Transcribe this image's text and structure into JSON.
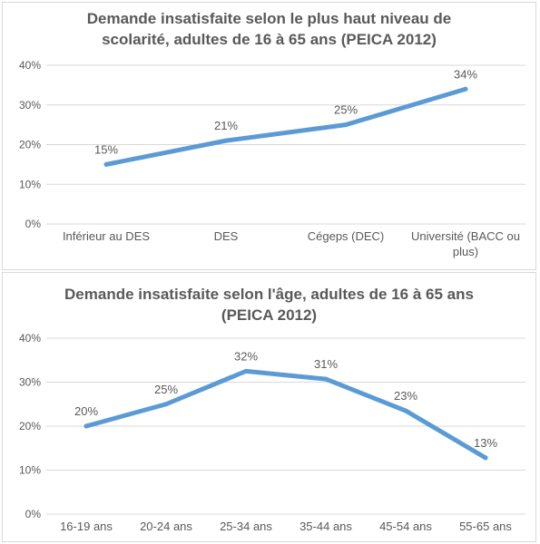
{
  "chart_data": [
    {
      "type": "line",
      "title_lines": [
        "Demande insatisfaite selon le plus haut niveau de",
        "scolarité, adultes de 16 à 65 ans (PEICA 2012)"
      ],
      "categories": [
        [
          "Inférieur au DES"
        ],
        [
          "DES"
        ],
        [
          "Cégeps (DEC)"
        ],
        [
          "Université (BACC ou",
          "plus)"
        ]
      ],
      "values": [
        15,
        21,
        25,
        34
      ],
      "data_labels": [
        "15%",
        "21%",
        "25%",
        "34%"
      ],
      "y_ticks": [
        "0%",
        "10%",
        "20%",
        "30%",
        "40%"
      ],
      "ylim": [
        0,
        40
      ],
      "grid": true,
      "legend": "none",
      "color": "#5b9bd5"
    },
    {
      "type": "line",
      "title_lines": [
        "Demande insatisfaite selon l'âge, adultes de 16 à 65 ans",
        "(PEICA 2012)"
      ],
      "categories": [
        [
          "16-19 ans"
        ],
        [
          "20-24 ans"
        ],
        [
          "25-34 ans"
        ],
        [
          "35-44 ans"
        ],
        [
          "45-54 ans"
        ],
        [
          "55-65 ans"
        ]
      ],
      "values": [
        20,
        25,
        32.5,
        30.7,
        23.5,
        12.8
      ],
      "data_labels": [
        "20%",
        "25%",
        "32%",
        "31%",
        "23%",
        "13%"
      ],
      "y_ticks": [
        "0%",
        "10%",
        "20%",
        "30%",
        "40%"
      ],
      "ylim": [
        0,
        40
      ],
      "grid": true,
      "legend": "none",
      "color": "#5b9bd5"
    }
  ]
}
